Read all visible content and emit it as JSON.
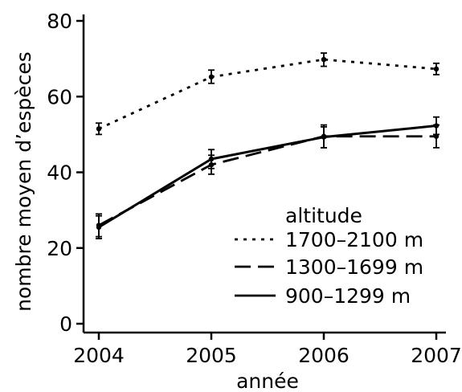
{
  "chart_data": {
    "type": "line",
    "title": "",
    "xlabel": "année",
    "ylabel": "nombre moyen d’espèces",
    "x": [
      2004,
      2005,
      2006,
      2007
    ],
    "x_ticks": [
      "2004",
      "2005",
      "2006",
      "2007"
    ],
    "y_ticks": [
      "0",
      "20",
      "40",
      "60",
      "80"
    ],
    "xlim": [
      2004,
      2007
    ],
    "ylim": [
      0,
      80
    ],
    "grid": false,
    "legend": {
      "title": "altitude",
      "placement": "bottom-right"
    },
    "series": [
      {
        "name": "1700–2100 m",
        "style": "dotted",
        "values": [
          51.5,
          65.2,
          69.8,
          67.3
        ],
        "err_low": [
          50.0,
          63.5,
          68.0,
          65.8
        ],
        "err_high": [
          53.0,
          67.0,
          71.5,
          68.8
        ]
      },
      {
        "name": "1300–1699 m",
        "style": "dashed",
        "values": [
          26.0,
          42.0,
          49.5,
          49.5
        ],
        "err_low": [
          23.0,
          39.5,
          46.5,
          46.5
        ],
        "err_high": [
          29.0,
          44.5,
          52.5,
          52.5
        ]
      },
      {
        "name": "900–1299 m",
        "style": "solid",
        "values": [
          25.5,
          43.5,
          49.3,
          52.3
        ],
        "err_low": [
          22.5,
          41.0,
          46.5,
          50.0
        ],
        "err_high": [
          28.5,
          46.0,
          52.0,
          54.6
        ]
      }
    ]
  }
}
